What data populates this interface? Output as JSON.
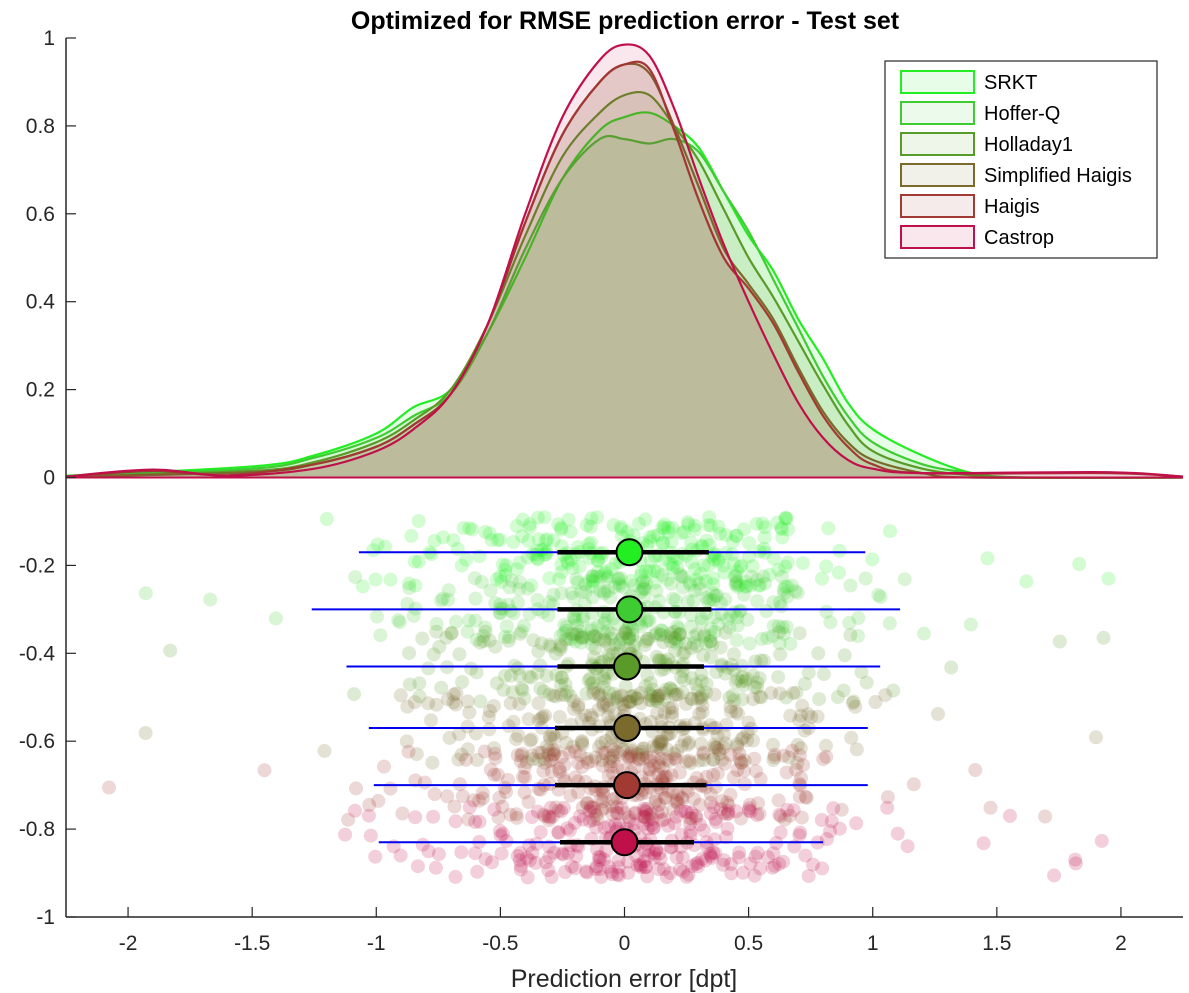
{
  "chart_data": {
    "type": "area",
    "title": "Optimized for RMSE prediction error - Test set",
    "xlabel": "Prediction error [dpt]",
    "ylabel": "",
    "xlim": [
      -2.25,
      2.25
    ],
    "ylim": [
      -1,
      1
    ],
    "xticks": [
      "-2",
      "-1.5",
      "-1",
      "-0.5",
      "0",
      "0.5",
      "1",
      "1.5",
      "2"
    ],
    "xtick_values": [
      -2,
      -1.5,
      -1,
      -0.5,
      0,
      0.5,
      1,
      1.5,
      2
    ],
    "yticks": [
      "1",
      "0.8",
      "0.6",
      "0.4",
      "0.2",
      "0",
      "-0.2",
      "-0.4",
      "-0.6",
      "-0.8",
      "-1"
    ],
    "ytick_values": [
      1,
      0.8,
      0.6,
      0.4,
      0.2,
      0,
      -0.2,
      -0.4,
      -0.6,
      -0.8,
      -1
    ],
    "grid": false,
    "legend_position": "top-right",
    "series": [
      {
        "name": "SRKT",
        "color": "#22ee22",
        "density": [
          [
            -2.25,
            0.004
          ],
          [
            -1.5,
            0.025
          ],
          [
            -1.25,
            0.05
          ],
          [
            -1.0,
            0.1
          ],
          [
            -0.85,
            0.16
          ],
          [
            -0.7,
            0.2
          ],
          [
            -0.55,
            0.33
          ],
          [
            -0.4,
            0.5
          ],
          [
            -0.25,
            0.68
          ],
          [
            -0.1,
            0.79
          ],
          [
            0.0,
            0.82
          ],
          [
            0.1,
            0.83
          ],
          [
            0.2,
            0.8
          ],
          [
            0.3,
            0.75
          ],
          [
            0.4,
            0.65
          ],
          [
            0.5,
            0.55
          ],
          [
            0.6,
            0.47
          ],
          [
            0.7,
            0.36
          ],
          [
            0.8,
            0.27
          ],
          [
            0.9,
            0.17
          ],
          [
            1.0,
            0.11
          ],
          [
            1.2,
            0.05
          ],
          [
            1.4,
            0.01
          ],
          [
            1.6,
            0.0
          ],
          [
            2.25,
            0.0
          ]
        ],
        "distribution": {
          "y": -0.17,
          "mean": 0.02,
          "iqr": [
            -0.27,
            0.34
          ],
          "range": [
            -1.07,
            0.97
          ]
        }
      },
      {
        "name": "Hoffer-Q",
        "color": "#3fcc33",
        "density": [
          [
            -2.25,
            0.003
          ],
          [
            -1.5,
            0.02
          ],
          [
            -1.25,
            0.045
          ],
          [
            -1.0,
            0.09
          ],
          [
            -0.85,
            0.14
          ],
          [
            -0.7,
            0.19
          ],
          [
            -0.55,
            0.33
          ],
          [
            -0.4,
            0.52
          ],
          [
            -0.25,
            0.68
          ],
          [
            -0.1,
            0.77
          ],
          [
            0.0,
            0.77
          ],
          [
            0.1,
            0.76
          ],
          [
            0.2,
            0.77
          ],
          [
            0.3,
            0.74
          ],
          [
            0.4,
            0.65
          ],
          [
            0.5,
            0.56
          ],
          [
            0.6,
            0.45
          ],
          [
            0.7,
            0.34
          ],
          [
            0.8,
            0.23
          ],
          [
            0.9,
            0.14
          ],
          [
            1.0,
            0.08
          ],
          [
            1.2,
            0.03
          ],
          [
            1.4,
            0.01
          ],
          [
            1.6,
            0.0
          ],
          [
            2.25,
            0.0
          ]
        ],
        "distribution": {
          "y": -0.3,
          "mean": 0.02,
          "iqr": [
            -0.27,
            0.35
          ],
          "range": [
            -1.26,
            1.11
          ]
        }
      },
      {
        "name": "Holladay1",
        "color": "#5a9a28",
        "density": [
          [
            -2.25,
            0.002
          ],
          [
            -1.5,
            0.015
          ],
          [
            -1.25,
            0.035
          ],
          [
            -1.0,
            0.08
          ],
          [
            -0.85,
            0.13
          ],
          [
            -0.7,
            0.2
          ],
          [
            -0.55,
            0.35
          ],
          [
            -0.4,
            0.55
          ],
          [
            -0.25,
            0.73
          ],
          [
            -0.1,
            0.83
          ],
          [
            0.0,
            0.87
          ],
          [
            0.1,
            0.87
          ],
          [
            0.2,
            0.8
          ],
          [
            0.3,
            0.72
          ],
          [
            0.4,
            0.61
          ],
          [
            0.5,
            0.5
          ],
          [
            0.6,
            0.41
          ],
          [
            0.7,
            0.31
          ],
          [
            0.8,
            0.21
          ],
          [
            0.9,
            0.12
          ],
          [
            1.0,
            0.06
          ],
          [
            1.2,
            0.02
          ],
          [
            1.4,
            0.005
          ],
          [
            1.6,
            0.0
          ],
          [
            2.25,
            0.0
          ]
        ],
        "distribution": {
          "y": -0.43,
          "mean": 0.01,
          "iqr": [
            -0.27,
            0.32
          ],
          "range": [
            -1.12,
            1.03
          ]
        }
      },
      {
        "name": "Simplified Haigis",
        "color": "#7a6a2c",
        "density": [
          [
            -2.25,
            0.002
          ],
          [
            -1.5,
            0.012
          ],
          [
            -1.25,
            0.03
          ],
          [
            -1.0,
            0.07
          ],
          [
            -0.85,
            0.12
          ],
          [
            -0.7,
            0.19
          ],
          [
            -0.55,
            0.35
          ],
          [
            -0.4,
            0.58
          ],
          [
            -0.25,
            0.78
          ],
          [
            -0.1,
            0.9
          ],
          [
            0.0,
            0.94
          ],
          [
            0.1,
            0.92
          ],
          [
            0.2,
            0.8
          ],
          [
            0.3,
            0.66
          ],
          [
            0.4,
            0.52
          ],
          [
            0.5,
            0.44
          ],
          [
            0.6,
            0.36
          ],
          [
            0.7,
            0.25
          ],
          [
            0.8,
            0.15
          ],
          [
            0.9,
            0.08
          ],
          [
            1.0,
            0.04
          ],
          [
            1.2,
            0.01
          ],
          [
            1.4,
            0.0
          ],
          [
            2.25,
            0.0
          ]
        ],
        "distribution": {
          "y": -0.57,
          "mean": 0.01,
          "iqr": [
            -0.28,
            0.32
          ],
          "range": [
            -1.03,
            0.98
          ]
        }
      },
      {
        "name": "Haigis",
        "color": "#a03a32",
        "density": [
          [
            -2.25,
            0.002
          ],
          [
            -1.9,
            0.015
          ],
          [
            -1.6,
            0.005
          ],
          [
            -1.25,
            0.03
          ],
          [
            -1.0,
            0.07
          ],
          [
            -0.85,
            0.12
          ],
          [
            -0.7,
            0.19
          ],
          [
            -0.55,
            0.35
          ],
          [
            -0.4,
            0.58
          ],
          [
            -0.25,
            0.78
          ],
          [
            -0.1,
            0.9
          ],
          [
            0.0,
            0.94
          ],
          [
            0.1,
            0.93
          ],
          [
            0.2,
            0.79
          ],
          [
            0.3,
            0.63
          ],
          [
            0.4,
            0.5
          ],
          [
            0.5,
            0.43
          ],
          [
            0.6,
            0.35
          ],
          [
            0.7,
            0.24
          ],
          [
            0.8,
            0.14
          ],
          [
            0.9,
            0.07
          ],
          [
            1.0,
            0.03
          ],
          [
            1.2,
            0.01
          ],
          [
            1.95,
            0.01
          ],
          [
            2.25,
            0.002
          ]
        ],
        "distribution": {
          "y": -0.7,
          "mean": 0.01,
          "iqr": [
            -0.28,
            0.33
          ],
          "range": [
            -1.01,
            0.98
          ]
        }
      },
      {
        "name": "Castrop",
        "color": "#c0104a",
        "density": [
          [
            -2.25,
            0.002
          ],
          [
            -1.9,
            0.018
          ],
          [
            -1.6,
            0.004
          ],
          [
            -1.25,
            0.02
          ],
          [
            -1.0,
            0.06
          ],
          [
            -0.85,
            0.11
          ],
          [
            -0.7,
            0.19
          ],
          [
            -0.55,
            0.35
          ],
          [
            -0.4,
            0.6
          ],
          [
            -0.25,
            0.82
          ],
          [
            -0.1,
            0.95
          ],
          [
            0.0,
            0.985
          ],
          [
            0.1,
            0.96
          ],
          [
            0.2,
            0.84
          ],
          [
            0.3,
            0.68
          ],
          [
            0.4,
            0.53
          ],
          [
            0.5,
            0.4
          ],
          [
            0.6,
            0.28
          ],
          [
            0.7,
            0.17
          ],
          [
            0.8,
            0.09
          ],
          [
            0.9,
            0.04
          ],
          [
            1.0,
            0.02
          ],
          [
            1.2,
            0.01
          ],
          [
            1.95,
            0.012
          ],
          [
            2.25,
            0.002
          ]
        ],
        "distribution": {
          "y": -0.83,
          "mean": 0.0,
          "iqr": [
            -0.26,
            0.28
          ],
          "range": [
            -0.99,
            0.8
          ]
        }
      }
    ]
  }
}
